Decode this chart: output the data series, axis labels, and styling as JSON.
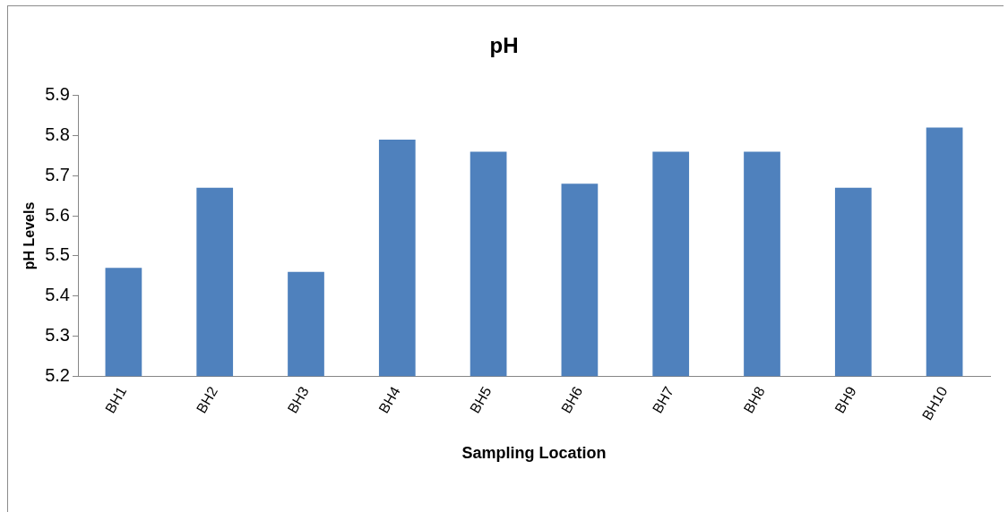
{
  "chart_data": {
    "type": "bar",
    "title": "pH",
    "xlabel": "Sampling Location",
    "ylabel": "pH Levels",
    "categories": [
      "BH1",
      "BH2",
      "BH3",
      "BH4",
      "BH5",
      "BH6",
      "BH7",
      "BH8",
      "BH9",
      "BH10"
    ],
    "values": [
      5.47,
      5.67,
      5.46,
      5.79,
      5.76,
      5.68,
      5.76,
      5.76,
      5.67,
      5.82
    ],
    "color": "#4f81bd",
    "ylim": [
      5.2,
      5.9
    ],
    "yticks": [
      5.2,
      5.3,
      5.4,
      5.5,
      5.6,
      5.7,
      5.8,
      5.9
    ],
    "grid": false,
    "legend": false
  }
}
